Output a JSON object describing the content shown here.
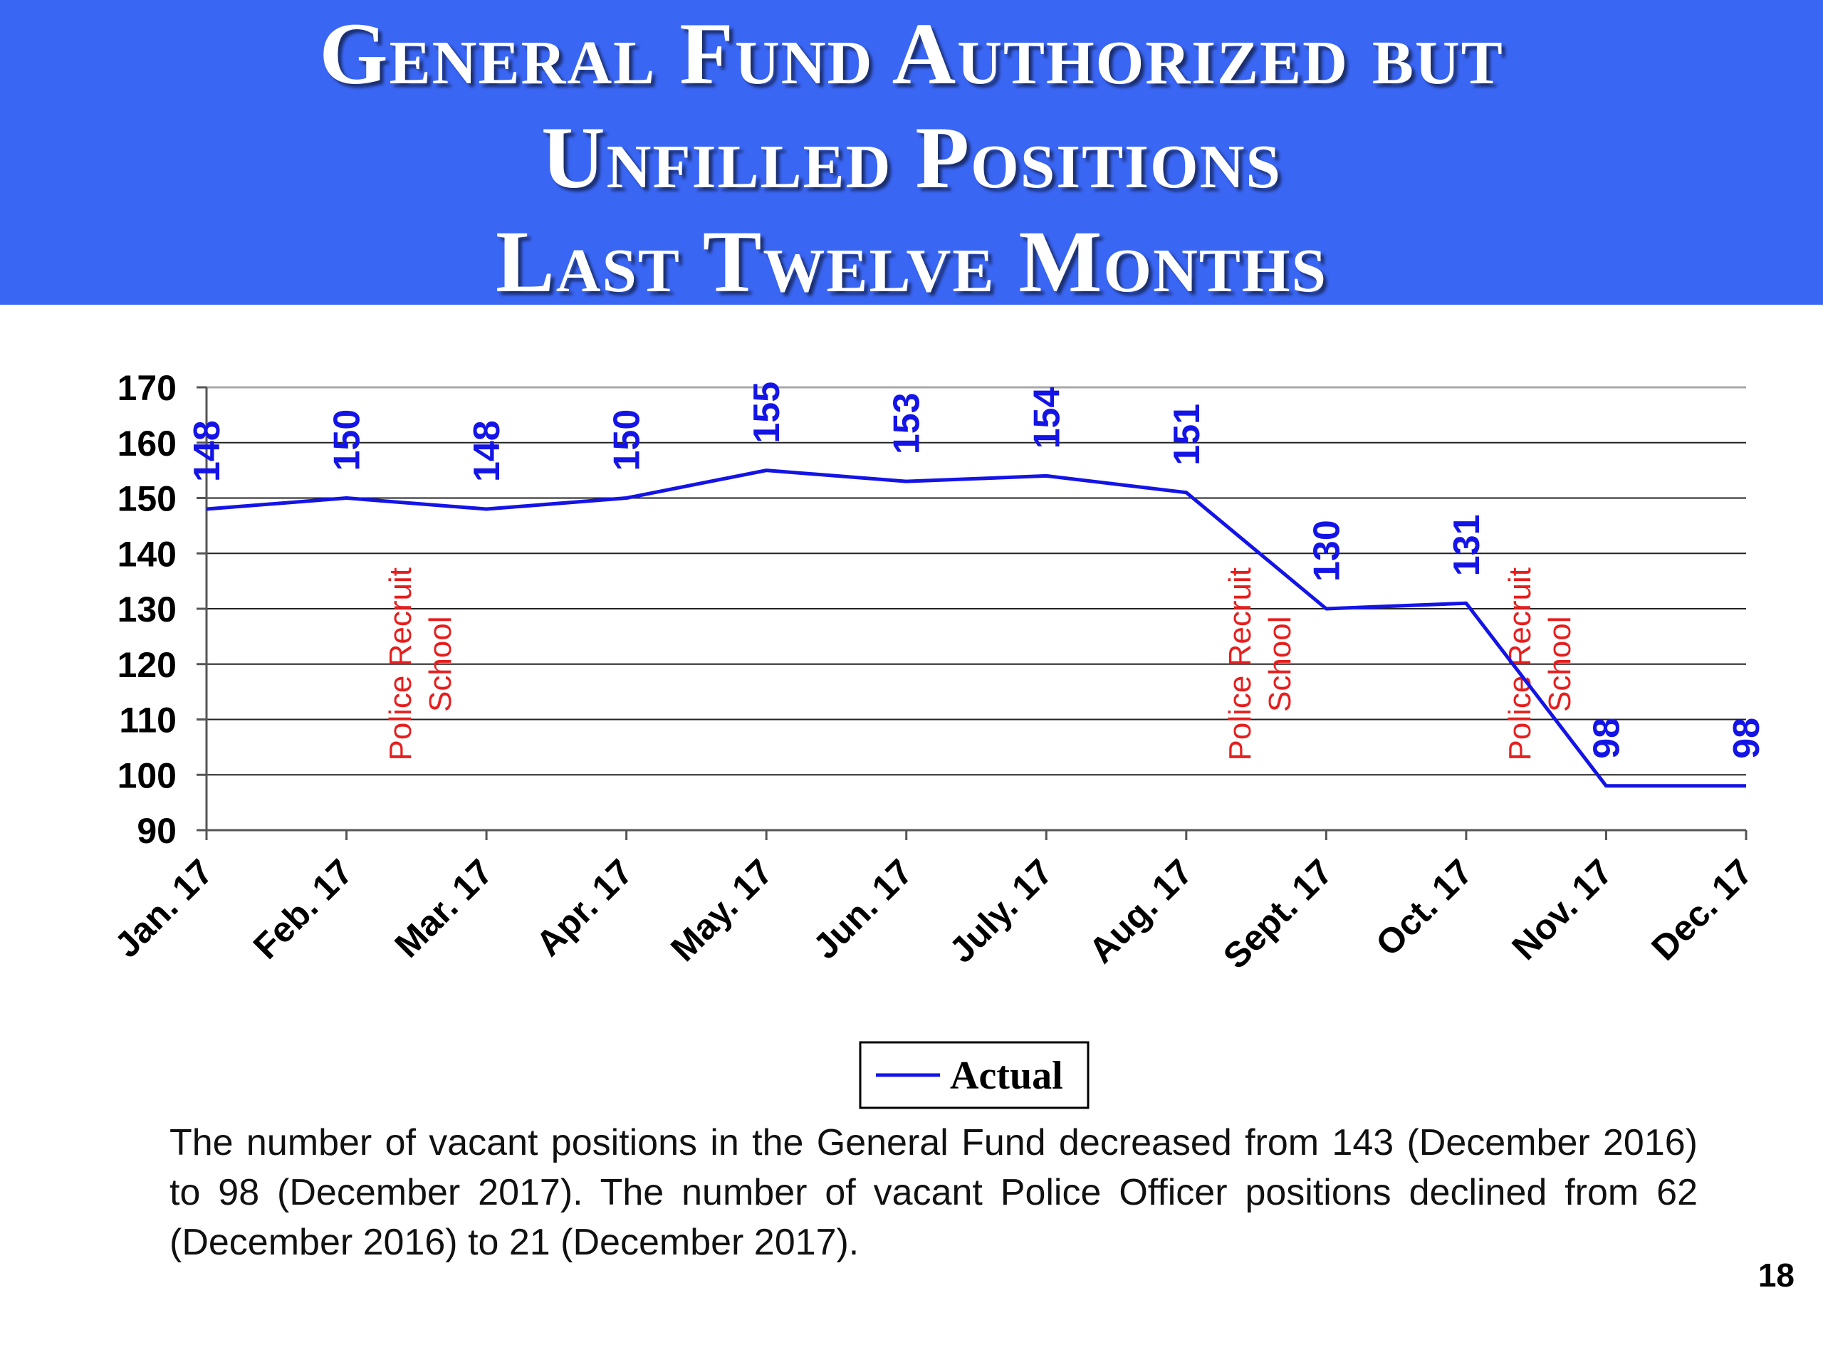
{
  "header": {
    "title_lines": [
      "General Fund Authorized but",
      "Unfilled Positions",
      "Last Twelve Months"
    ]
  },
  "chart_data": {
    "type": "line",
    "categories": [
      "Jan. 17",
      "Feb. 17",
      "Mar. 17",
      "Apr. 17",
      "May. 17",
      "Jun. 17",
      "July. 17",
      "Aug. 17",
      "Sept. 17",
      "Oct. 17",
      "Nov. 17",
      "Dec. 17"
    ],
    "series": [
      {
        "name": "Actual",
        "values": [
          148,
          150,
          148,
          150,
          155,
          153,
          154,
          151,
          130,
          131,
          98,
          98
        ]
      }
    ],
    "ylim": [
      90,
      170
    ],
    "yticks": [
      90,
      100,
      110,
      120,
      130,
      140,
      150,
      160,
      170
    ],
    "grid": true,
    "legend_position": "bottom-center",
    "annotations": [
      {
        "text": [
          "Police Recruit",
          "School"
        ],
        "after_category": "Feb. 17"
      },
      {
        "text": [
          "Police Recruit",
          "School"
        ],
        "after_category": "Aug. 17"
      },
      {
        "text": [
          "Police Recruit",
          "School"
        ],
        "after_category": "Oct. 17"
      }
    ],
    "colors": {
      "line": "#1414e6",
      "labels": "#1414e6",
      "annotations": "#e61e1e"
    }
  },
  "caption": "The number of vacant positions in the General Fund decreased from 143 (December 2016) to 98 (December 2017).  The number of vacant Police Officer positions declined from 62 (December 2016) to 21 (December 2017).",
  "page_number": "18"
}
